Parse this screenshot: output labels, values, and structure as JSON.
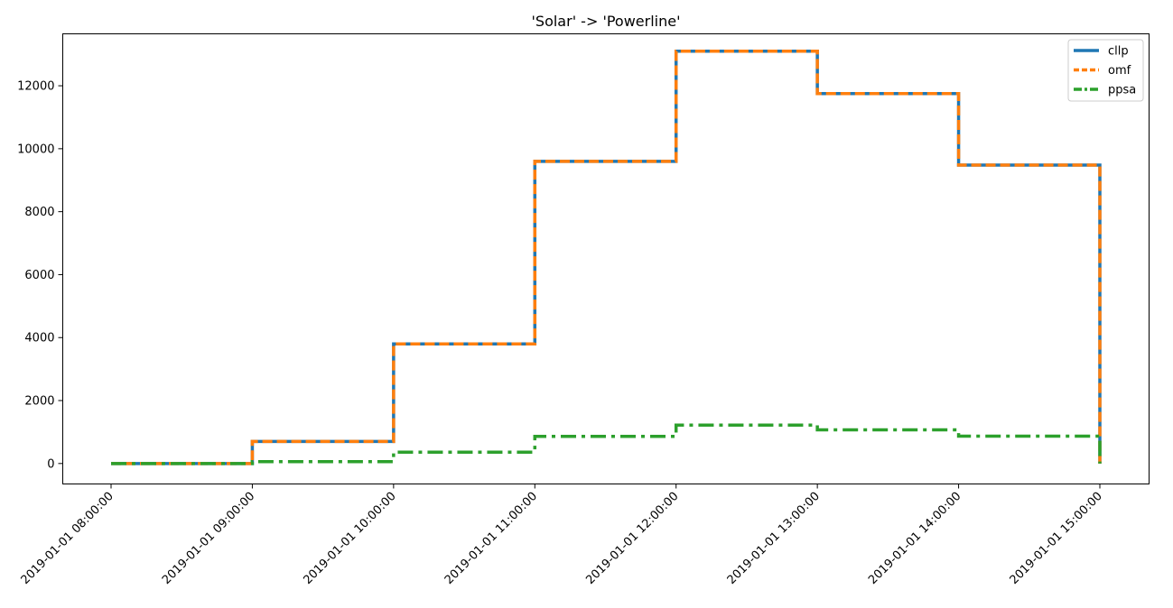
{
  "chart_data": {
    "type": "line",
    "step": "post",
    "title": "'Solar' -> 'Powerline'",
    "xlabel": "",
    "ylabel": "",
    "x": [
      "2019-01-01 08:00:00",
      "2019-01-01 09:00:00",
      "2019-01-01 10:00:00",
      "2019-01-01 11:00:00",
      "2019-01-01 12:00:00",
      "2019-01-01 13:00:00",
      "2019-01-01 14:00:00",
      "2019-01-01 15:00:00"
    ],
    "x_tick_labels": [
      "2019-01-01 08:00:00",
      "2019-01-01 09:00:00",
      "2019-01-01 10:00:00",
      "2019-01-01 11:00:00",
      "2019-01-01 12:00:00",
      "2019-01-01 13:00:00",
      "2019-01-01 14:00:00",
      "2019-01-01 15:00:00"
    ],
    "y_ticks": [
      0,
      2000,
      4000,
      6000,
      8000,
      10000,
      12000
    ],
    "ylim": [
      -650,
      13650
    ],
    "grid": false,
    "legend_position": "top-right",
    "series": [
      {
        "name": "cllp",
        "color": "#1f77b4",
        "dash": "solid",
        "values": [
          0,
          700,
          3800,
          9600,
          13100,
          11750,
          9480,
          0
        ]
      },
      {
        "name": "omf",
        "color": "#ff7f0e",
        "dash": "dashed",
        "values": [
          0,
          700,
          3800,
          9600,
          13100,
          11750,
          9480,
          0
        ]
      },
      {
        "name": "ppsa",
        "color": "#2ca02c",
        "dash": "dashdot",
        "values": [
          0,
          60,
          360,
          860,
          1220,
          1070,
          870,
          0
        ]
      }
    ]
  }
}
